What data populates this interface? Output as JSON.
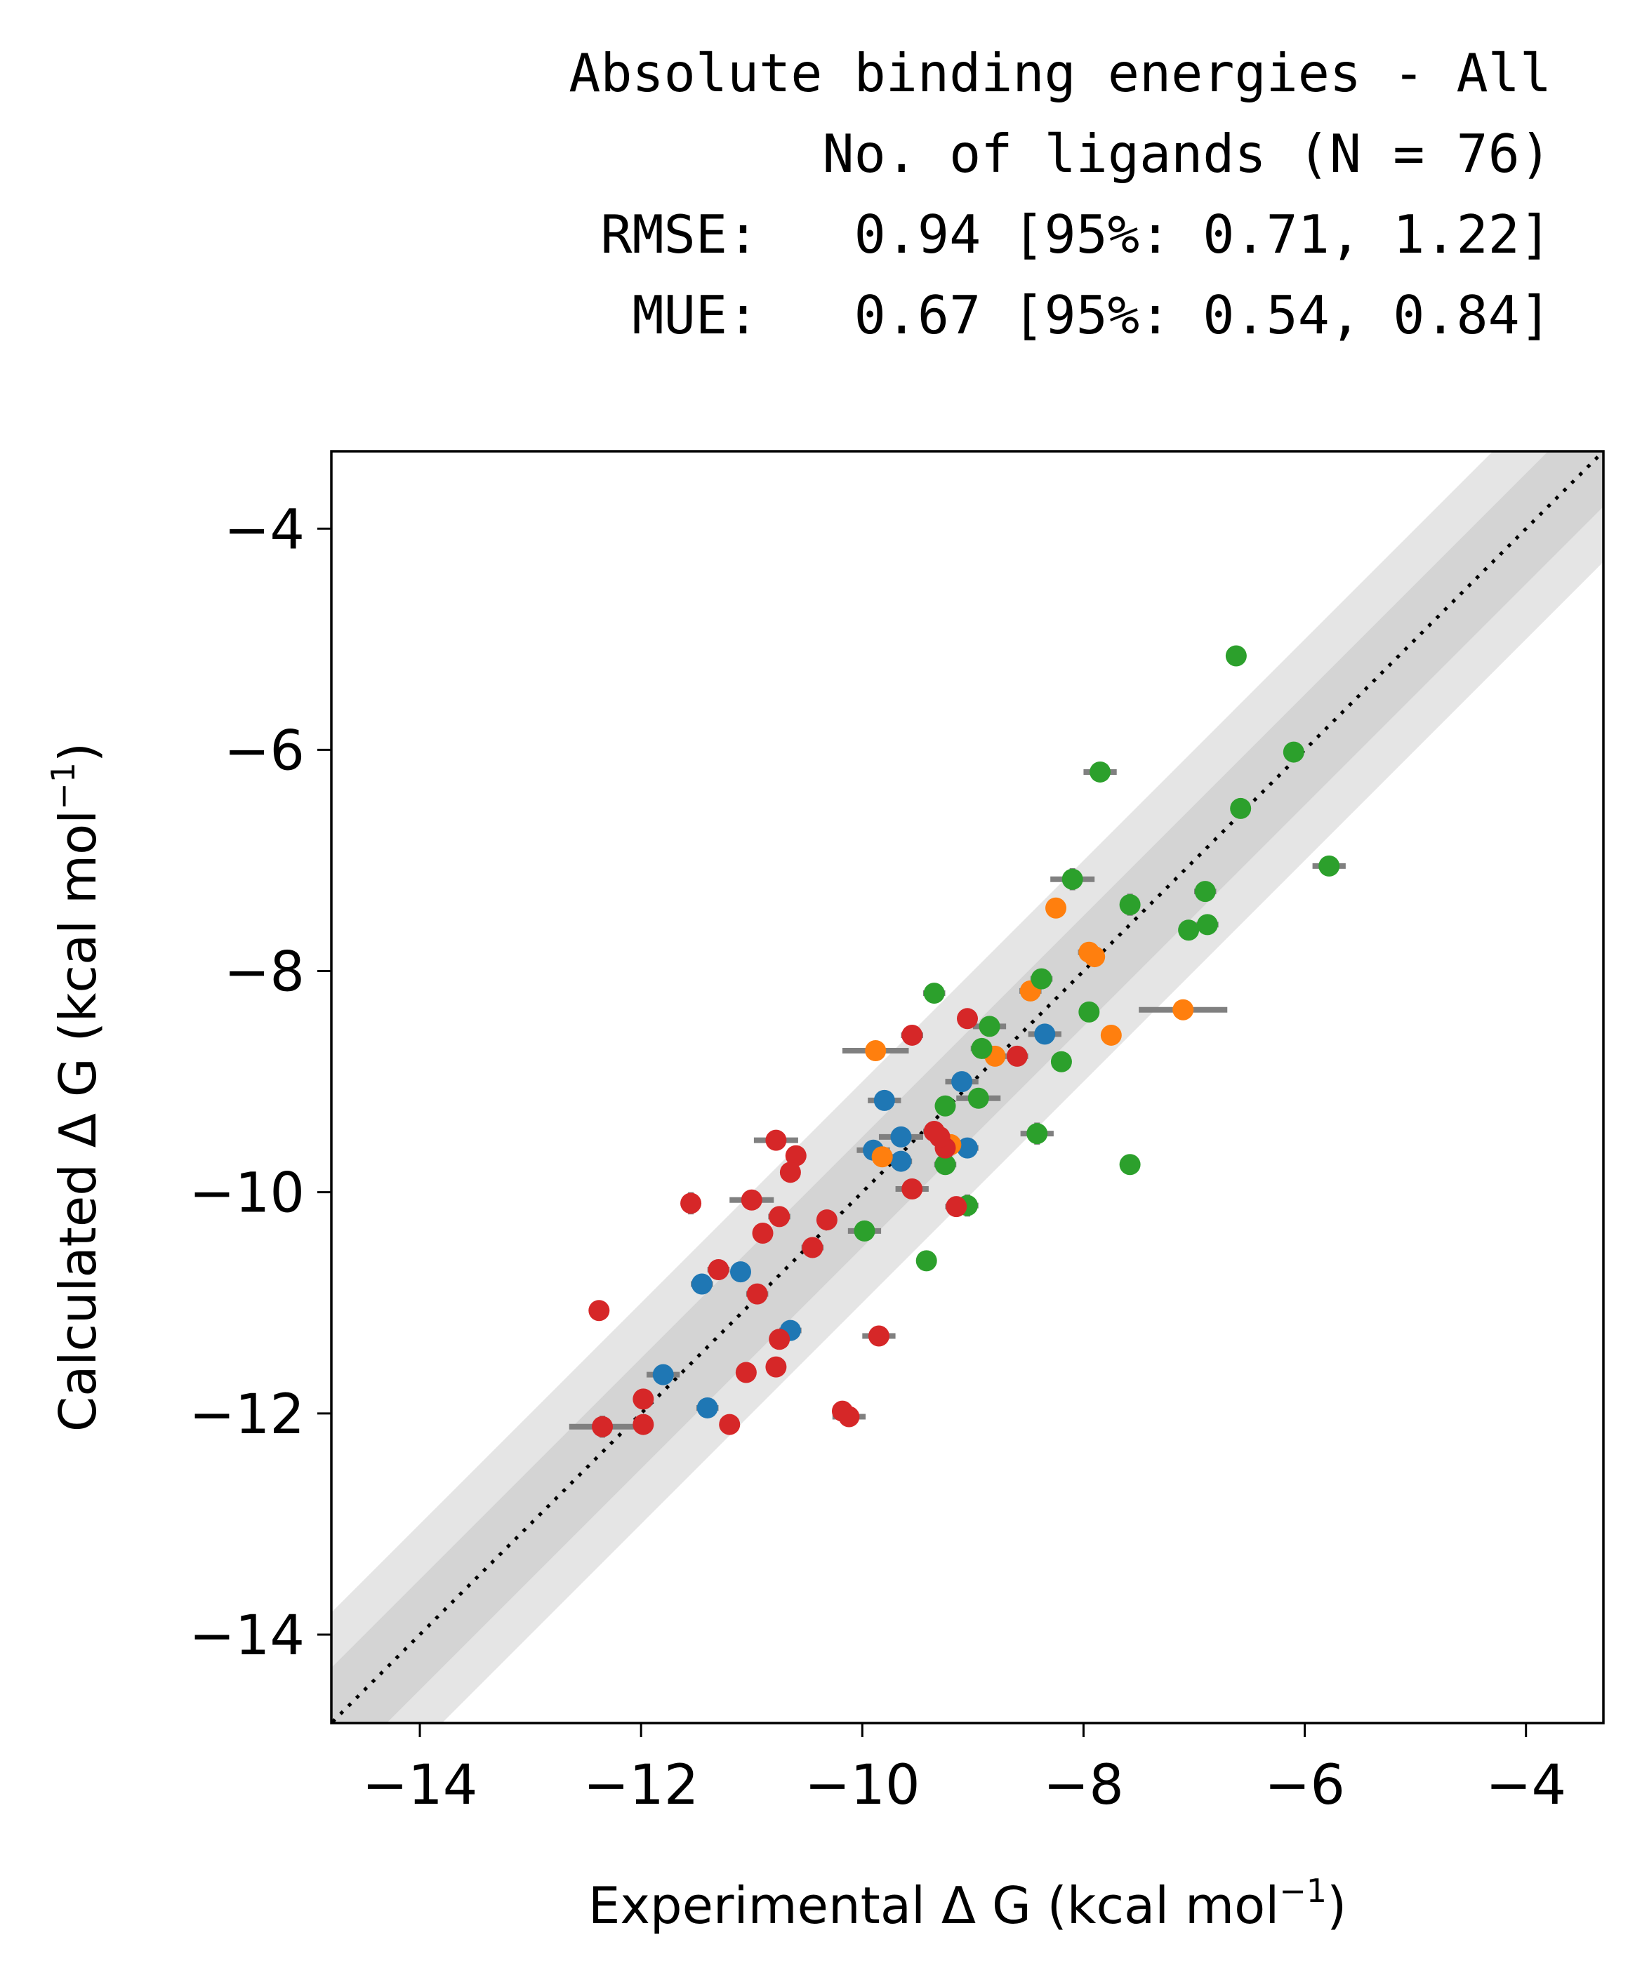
{
  "chart_data": {
    "type": "scatter",
    "title": [
      "Absolute binding energies - All",
      "No. of ligands (N = 76)",
      "RMSE:   0.94 [95%: 0.71, 1.22]",
      "MUE:   0.67 [95%: 0.54, 0.84]"
    ],
    "xlabel": {
      "main": "Experimental Δ G (kcal mol",
      "sup": "−1",
      "close": ")"
    },
    "ylabel": {
      "main": "Calculated Δ G (kcal mol",
      "sup": "−1",
      "close": ")"
    },
    "xlim": [
      -14.8,
      -3.3
    ],
    "ylim": [
      -14.8,
      -3.3
    ],
    "xticks": [
      -14,
      -12,
      -10,
      -8,
      -6,
      -4
    ],
    "yticks": [
      -14,
      -12,
      -10,
      -8,
      -6,
      -4
    ],
    "tick_labels": [
      "−14",
      "−12",
      "−10",
      "−8",
      "−6",
      "−4"
    ],
    "bands": [
      1,
      0.5
    ],
    "colors": {
      "series": [
        "#1f77b4",
        "#ff7f0e",
        "#2ca02c",
        "#d62728"
      ],
      "errorbar": "#808080",
      "band_outer": "#e5e5e5",
      "band_inner": "#d4d4d4",
      "identity": "#000000"
    },
    "series": [
      {
        "color": "#1f77b4",
        "points": [
          {
            "x": -11.8,
            "y": -11.65,
            "xerr": 0.15,
            "yerr": 0.05
          },
          {
            "x": -11.45,
            "y": -10.83,
            "xerr": 0.1,
            "yerr": 0.05
          },
          {
            "x": -11.1,
            "y": -10.72,
            "xerr": 0.05,
            "yerr": 0.05
          },
          {
            "x": -11.4,
            "y": -11.95,
            "xerr": 0.1,
            "yerr": 0.05
          },
          {
            "x": -10.65,
            "y": -11.25,
            "xerr": 0.1,
            "yerr": 0.05
          },
          {
            "x": -9.8,
            "y": -9.17,
            "xerr": 0.15,
            "yerr": 0.05
          },
          {
            "x": -9.9,
            "y": -9.62,
            "xerr": 0.15,
            "yerr": 0.05
          },
          {
            "x": -9.65,
            "y": -9.5,
            "xerr": 0.2,
            "yerr": 0.05
          },
          {
            "x": -9.65,
            "y": -9.72,
            "xerr": 0.1,
            "yerr": 0.05
          },
          {
            "x": -9.1,
            "y": -9.0,
            "xerr": 0.15,
            "yerr": 0.05
          },
          {
            "x": -9.05,
            "y": -9.6,
            "xerr": 0.1,
            "yerr": 0.05
          },
          {
            "x": -8.35,
            "y": -8.57,
            "xerr": 0.15,
            "yerr": 0.05
          }
        ]
      },
      {
        "color": "#ff7f0e",
        "points": [
          {
            "x": -9.88,
            "y": -8.72,
            "xerr": 0.3,
            "yerr": 0.05
          },
          {
            "x": -9.82,
            "y": -9.68,
            "xerr": 0.1,
            "yerr": 0.05
          },
          {
            "x": -9.2,
            "y": -9.57,
            "xerr": 0.1,
            "yerr": 0.05
          },
          {
            "x": -8.8,
            "y": -8.77,
            "xerr": 0.1,
            "yerr": 0.05
          },
          {
            "x": -8.48,
            "y": -8.18,
            "xerr": 0.1,
            "yerr": 0.05
          },
          {
            "x": -8.25,
            "y": -7.43,
            "xerr": 0.05,
            "yerr": 0.05
          },
          {
            "x": -7.95,
            "y": -7.83,
            "xerr": 0.1,
            "yerr": 0.05
          },
          {
            "x": -7.9,
            "y": -7.87,
            "xerr": 0.05,
            "yerr": 0.05
          },
          {
            "x": -7.75,
            "y": -8.58,
            "xerr": 0.05,
            "yerr": 0.05
          },
          {
            "x": -7.1,
            "y": -8.35,
            "xerr": 0.4,
            "yerr": 0.05
          }
        ]
      },
      {
        "color": "#2ca02c",
        "points": [
          {
            "x": -6.62,
            "y": -5.15,
            "xerr": 0.05,
            "yerr": 0.05
          },
          {
            "x": -6.1,
            "y": -6.02,
            "xerr": 0.05,
            "yerr": 0.05
          },
          {
            "x": -7.85,
            "y": -6.2,
            "xerr": 0.15,
            "yerr": 0.05
          },
          {
            "x": -6.58,
            "y": -6.53,
            "xerr": 0.05,
            "yerr": 0.05
          },
          {
            "x": -8.1,
            "y": -7.17,
            "xerr": 0.2,
            "yerr": 0.1
          },
          {
            "x": -5.78,
            "y": -7.05,
            "xerr": 0.15,
            "yerr": 0.05
          },
          {
            "x": -7.58,
            "y": -7.4,
            "xerr": 0.05,
            "yerr": 0.1
          },
          {
            "x": -6.9,
            "y": -7.28,
            "xerr": 0.1,
            "yerr": 0.05
          },
          {
            "x": -7.05,
            "y": -7.63,
            "xerr": 0.05,
            "yerr": 0.05
          },
          {
            "x": -6.88,
            "y": -7.58,
            "xerr": 0.1,
            "yerr": 0.05
          },
          {
            "x": -9.35,
            "y": -8.2,
            "xerr": 0.1,
            "yerr": 0.05
          },
          {
            "x": -8.38,
            "y": -8.07,
            "xerr": 0.1,
            "yerr": 0.05
          },
          {
            "x": -7.95,
            "y": -8.37,
            "xerr": 0.05,
            "yerr": 0.05
          },
          {
            "x": -8.85,
            "y": -8.5,
            "xerr": 0.15,
            "yerr": 0.05
          },
          {
            "x": -8.92,
            "y": -8.7,
            "xerr": 0.1,
            "yerr": 0.05
          },
          {
            "x": -8.2,
            "y": -8.82,
            "xerr": 0.05,
            "yerr": 0.05
          },
          {
            "x": -9.25,
            "y": -9.22,
            "xerr": 0.05,
            "yerr": 0.05
          },
          {
            "x": -8.95,
            "y": -9.15,
            "xerr": 0.2,
            "yerr": 0.05
          },
          {
            "x": -8.42,
            "y": -9.47,
            "xerr": 0.15,
            "yerr": 0.1
          },
          {
            "x": -9.25,
            "y": -9.75,
            "xerr": 0.1,
            "yerr": 0.05
          },
          {
            "x": -7.58,
            "y": -9.75,
            "xerr": 0.05,
            "yerr": 0.05
          },
          {
            "x": -9.05,
            "y": -10.12,
            "xerr": 0.1,
            "yerr": 0.1
          },
          {
            "x": -9.98,
            "y": -10.35,
            "xerr": 0.15,
            "yerr": 0.05
          },
          {
            "x": -9.42,
            "y": -10.62,
            "xerr": 0.05,
            "yerr": 0.05
          }
        ]
      },
      {
        "color": "#d62728",
        "points": [
          {
            "x": -12.38,
            "y": -11.07,
            "xerr": 0.05,
            "yerr": 0.05
          },
          {
            "x": -11.55,
            "y": -10.1,
            "xerr": 0.05,
            "yerr": 0.1
          },
          {
            "x": -11.0,
            "y": -10.07,
            "xerr": 0.2,
            "yerr": 0.05
          },
          {
            "x": -10.78,
            "y": -9.53,
            "xerr": 0.2,
            "yerr": 0.05
          },
          {
            "x": -10.6,
            "y": -9.67,
            "xerr": 0.05,
            "yerr": 0.05
          },
          {
            "x": -10.65,
            "y": -9.82,
            "xerr": 0.05,
            "yerr": 0.05
          },
          {
            "x": -10.9,
            "y": -10.37,
            "xerr": 0.05,
            "yerr": 0.05
          },
          {
            "x": -10.75,
            "y": -10.22,
            "xerr": 0.1,
            "yerr": 0.05
          },
          {
            "x": -10.32,
            "y": -10.25,
            "xerr": 0.05,
            "yerr": 0.05
          },
          {
            "x": -10.45,
            "y": -10.5,
            "xerr": 0.1,
            "yerr": 0.05
          },
          {
            "x": -11.3,
            "y": -10.7,
            "xerr": 0.1,
            "yerr": 0.05
          },
          {
            "x": -10.95,
            "y": -10.92,
            "xerr": 0.1,
            "yerr": 0.05
          },
          {
            "x": -10.75,
            "y": -11.33,
            "xerr": 0.05,
            "yerr": 0.05
          },
          {
            "x": -9.85,
            "y": -11.3,
            "xerr": 0.15,
            "yerr": 0.05
          },
          {
            "x": -11.05,
            "y": -11.63,
            "xerr": 0.05,
            "yerr": 0.05
          },
          {
            "x": -10.78,
            "y": -11.58,
            "xerr": 0.05,
            "yerr": 0.05
          },
          {
            "x": -11.98,
            "y": -11.87,
            "xerr": 0.05,
            "yerr": 0.05
          },
          {
            "x": -11.98,
            "y": -12.1,
            "xerr": 0.05,
            "yerr": 0.05
          },
          {
            "x": -12.35,
            "y": -12.12,
            "xerr": 0.3,
            "yerr": 0.1
          },
          {
            "x": -11.2,
            "y": -12.1,
            "xerr": 0.05,
            "yerr": 0.05
          },
          {
            "x": -10.18,
            "y": -11.98,
            "xerr": 0.05,
            "yerr": 0.05
          },
          {
            "x": -10.12,
            "y": -12.03,
            "xerr": 0.15,
            "yerr": 0.05
          },
          {
            "x": -9.55,
            "y": -8.58,
            "xerr": 0.1,
            "yerr": 0.05
          },
          {
            "x": -9.05,
            "y": -8.43,
            "xerr": 0.05,
            "yerr": 0.05
          },
          {
            "x": -8.6,
            "y": -8.77,
            "xerr": 0.1,
            "yerr": 0.05
          },
          {
            "x": -9.35,
            "y": -9.45,
            "xerr": 0.1,
            "yerr": 0.05
          },
          {
            "x": -9.55,
            "y": -9.97,
            "xerr": 0.15,
            "yerr": 0.05
          },
          {
            "x": -9.15,
            "y": -10.13,
            "xerr": 0.1,
            "yerr": 0.05
          },
          {
            "x": -9.25,
            "y": -9.6,
            "xerr": 0.05,
            "yerr": 0.05
          },
          {
            "x": -9.3,
            "y": -9.5,
            "xerr": 0.1,
            "yerr": 0.05
          }
        ]
      }
    ]
  }
}
